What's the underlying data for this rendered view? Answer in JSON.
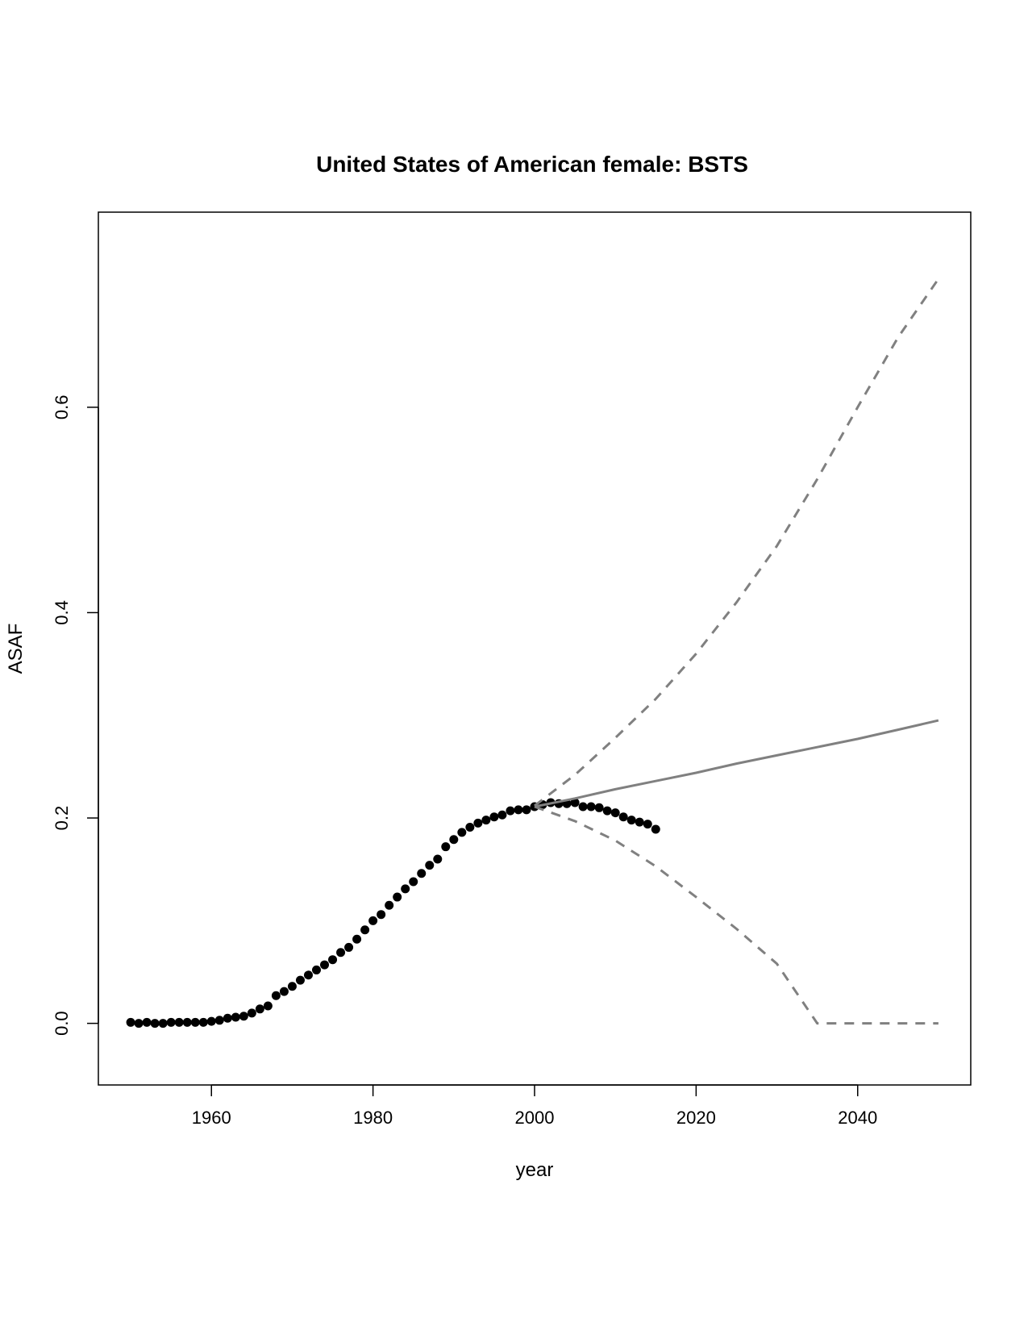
{
  "chart_data": {
    "type": "line",
    "title": "United States of American female: BSTS",
    "xlabel": "year",
    "ylabel": "ASAF",
    "xlim": [
      1946,
      2054
    ],
    "ylim": [
      -0.06,
      0.79
    ],
    "x_ticks": [
      1960,
      1980,
      2000,
      2020,
      2040
    ],
    "x_tick_labels": [
      "1960",
      "1980",
      "2000",
      "2020",
      "2040"
    ],
    "y_ticks": [
      0.0,
      0.2,
      0.4,
      0.6
    ],
    "y_tick_labels": [
      "0.0",
      "0.2",
      "0.4",
      "0.6"
    ],
    "grid": false,
    "series": [
      {
        "style": "points",
        "color": "#000000",
        "x": [
          1950,
          1951,
          1952,
          1953,
          1954,
          1955,
          1956,
          1957,
          1958,
          1959,
          1960,
          1961,
          1962,
          1963,
          1964,
          1965,
          1966,
          1967,
          1968,
          1969,
          1970,
          1971,
          1972,
          1973,
          1974,
          1975,
          1976,
          1977,
          1978,
          1979,
          1980,
          1981,
          1982,
          1983,
          1984,
          1985,
          1986,
          1987,
          1988,
          1989,
          1990,
          1991,
          1992,
          1993,
          1994,
          1995,
          1996,
          1997,
          1998,
          1999,
          2000,
          2001,
          2002,
          2003,
          2004,
          2005,
          2006,
          2007,
          2008,
          2009,
          2010,
          2011,
          2012,
          2013,
          2014,
          2015
        ],
        "values": [
          0.001,
          0.0,
          0.001,
          0.0,
          0.0,
          0.001,
          0.001,
          0.001,
          0.001,
          0.001,
          0.002,
          0.003,
          0.005,
          0.006,
          0.007,
          0.01,
          0.014,
          0.017,
          0.027,
          0.031,
          0.036,
          0.042,
          0.047,
          0.052,
          0.057,
          0.062,
          0.069,
          0.074,
          0.082,
          0.091,
          0.1,
          0.106,
          0.115,
          0.123,
          0.131,
          0.138,
          0.146,
          0.154,
          0.16,
          0.172,
          0.179,
          0.186,
          0.191,
          0.195,
          0.198,
          0.201,
          0.203,
          0.207,
          0.208,
          0.208,
          0.211,
          0.213,
          0.215,
          0.214,
          0.214,
          0.215,
          0.211,
          0.211,
          0.21,
          0.207,
          0.205,
          0.201,
          0.198,
          0.196,
          0.194,
          0.189
        ]
      },
      {
        "style": "solid",
        "color": "#808080",
        "x": [
          2000,
          2005,
          2010,
          2015,
          2020,
          2025,
          2030,
          2035,
          2040,
          2045,
          2050
        ],
        "values": [
          0.211,
          0.219,
          0.228,
          0.236,
          0.244,
          0.253,
          0.261,
          0.269,
          0.277,
          0.286,
          0.295
        ]
      },
      {
        "style": "dashed",
        "color": "#808080",
        "x": [
          2000,
          2005,
          2010,
          2015,
          2020,
          2025,
          2030,
          2035,
          2040,
          2045,
          2050
        ],
        "values": [
          0.212,
          0.242,
          0.278,
          0.316,
          0.36,
          0.41,
          0.465,
          0.53,
          0.6,
          0.668,
          0.725
        ]
      },
      {
        "style": "dashed",
        "color": "#808080",
        "x": [
          2000,
          2005,
          2010,
          2015,
          2020,
          2025,
          2030,
          2035,
          2040,
          2045,
          2050
        ],
        "values": [
          0.211,
          0.197,
          0.178,
          0.153,
          0.123,
          0.092,
          0.058,
          0.0,
          0.0,
          0.0,
          0.0
        ]
      }
    ]
  }
}
